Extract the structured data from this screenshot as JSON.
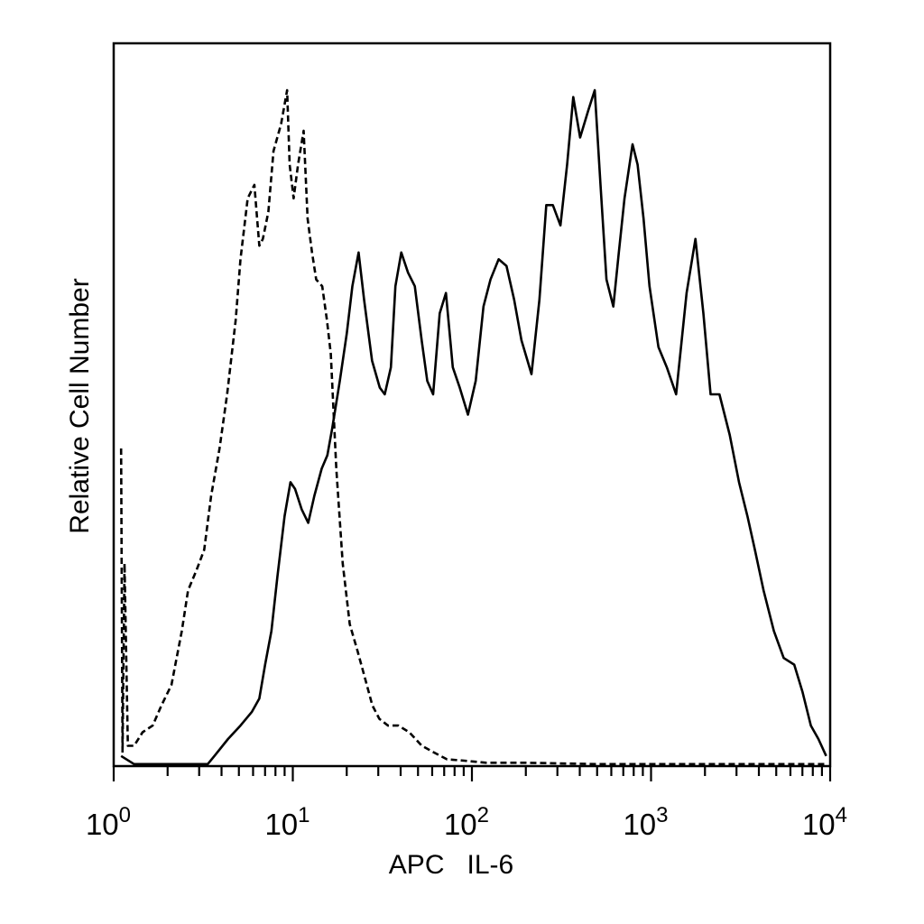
{
  "chart_data": {
    "type": "line",
    "x_scale": "log10",
    "xlim": [
      1,
      10000
    ],
    "ylim": [
      0,
      100
    ],
    "xlabel": "APC   IL-6",
    "ylabel": "Relative Cell Number",
    "x_ticks": [
      {
        "value": 1,
        "base": "10",
        "exp": "0"
      },
      {
        "value": 10,
        "base": "10",
        "exp": "1"
      },
      {
        "value": 100,
        "base": "10",
        "exp": "2"
      },
      {
        "value": 1000,
        "base": "10",
        "exp": "3"
      },
      {
        "value": 10000,
        "base": "10",
        "exp": "4"
      }
    ],
    "grid": false,
    "colors": {
      "line": "#000000",
      "background": "#ffffff"
    },
    "series": [
      {
        "style": "dashed",
        "points": [
          [
            1.1,
            47
          ],
          [
            1.12,
            2
          ],
          [
            1.15,
            30
          ],
          [
            1.2,
            3
          ],
          [
            1.3,
            3
          ],
          [
            1.45,
            5
          ],
          [
            1.65,
            6
          ],
          [
            1.85,
            9
          ],
          [
            2.1,
            12
          ],
          [
            2.4,
            20
          ],
          [
            2.6,
            26
          ],
          [
            2.9,
            29
          ],
          [
            3.2,
            32
          ],
          [
            3.5,
            40
          ],
          [
            3.9,
            47
          ],
          [
            4.3,
            55
          ],
          [
            4.8,
            66
          ],
          [
            5.1,
            75
          ],
          [
            5.6,
            84
          ],
          [
            6.1,
            86
          ],
          [
            6.5,
            77
          ],
          [
            6.8,
            78
          ],
          [
            7.3,
            82
          ],
          [
            7.8,
            91
          ],
          [
            8.6,
            95
          ],
          [
            9.3,
            100
          ],
          [
            9.6,
            89
          ],
          [
            10.1,
            84
          ],
          [
            10.7,
            89
          ],
          [
            11.5,
            94
          ],
          [
            12.1,
            81
          ],
          [
            12.8,
            76
          ],
          [
            13.5,
            72
          ],
          [
            14.6,
            71
          ],
          [
            15.5,
            66
          ],
          [
            16.3,
            61
          ],
          [
            17.5,
            44
          ],
          [
            19.0,
            30
          ],
          [
            20.8,
            21
          ],
          [
            23.0,
            17
          ],
          [
            25.3,
            13
          ],
          [
            27.8,
            9
          ],
          [
            30.4,
            7
          ],
          [
            34.0,
            6
          ],
          [
            38.8,
            6
          ],
          [
            44.7,
            5
          ],
          [
            52.5,
            3
          ],
          [
            61.5,
            2
          ],
          [
            72.6,
            1
          ],
          [
            90.7,
            0.8
          ],
          [
            120,
            0.5
          ],
          [
            200,
            0.5
          ],
          [
            500,
            0.3
          ],
          [
            1000,
            0.3
          ],
          [
            3000,
            0.3
          ],
          [
            9500,
            0.3
          ]
        ]
      },
      {
        "style": "solid",
        "points": [
          [
            1.1,
            1.5
          ],
          [
            1.3,
            0.3
          ],
          [
            2.0,
            0.3
          ],
          [
            3.35,
            0.3
          ],
          [
            3.65,
            1.5
          ],
          [
            4.35,
            4
          ],
          [
            5.1,
            6
          ],
          [
            5.9,
            8
          ],
          [
            6.5,
            10
          ],
          [
            7.0,
            15
          ],
          [
            7.6,
            20
          ],
          [
            8.2,
            28
          ],
          [
            9.0,
            37
          ],
          [
            9.7,
            42
          ],
          [
            10.3,
            41
          ],
          [
            11.2,
            38
          ],
          [
            12.2,
            36
          ],
          [
            13.2,
            40
          ],
          [
            14.5,
            44
          ],
          [
            15.6,
            46
          ],
          [
            16.6,
            50
          ],
          [
            18.3,
            57
          ],
          [
            20.0,
            64
          ],
          [
            21.5,
            71
          ],
          [
            23.3,
            76
          ],
          [
            25.0,
            69
          ],
          [
            27.7,
            60
          ],
          [
            30.6,
            56
          ],
          [
            32.6,
            55
          ],
          [
            35.3,
            59
          ],
          [
            37.4,
            71
          ],
          [
            40.3,
            76
          ],
          [
            44.0,
            73
          ],
          [
            48.0,
            71
          ],
          [
            52.4,
            63
          ],
          [
            56.3,
            57
          ],
          [
            60.7,
            55
          ],
          [
            66.1,
            67
          ],
          [
            71.6,
            70
          ],
          [
            78.2,
            59
          ],
          [
            85.5,
            56
          ],
          [
            95.0,
            52
          ],
          [
            105,
            57
          ],
          [
            116,
            68
          ],
          [
            127,
            72
          ],
          [
            141,
            75
          ],
          [
            156,
            74
          ],
          [
            172,
            69
          ],
          [
            189,
            63
          ],
          [
            215,
            58
          ],
          [
            238,
            69
          ],
          [
            260,
            83
          ],
          [
            283,
            83
          ],
          [
            312,
            80
          ],
          [
            340,
            89
          ],
          [
            368,
            99
          ],
          [
            402,
            93
          ],
          [
            446,
            97
          ],
          [
            485,
            100
          ],
          [
            522,
            86
          ],
          [
            564,
            72
          ],
          [
            616,
            68
          ],
          [
            661,
            76
          ],
          [
            711,
            84
          ],
          [
            788,
            92
          ],
          [
            841,
            89
          ],
          [
            908,
            81
          ],
          [
            981,
            71
          ],
          [
            1100,
            62
          ],
          [
            1225,
            59
          ],
          [
            1380,
            55
          ],
          [
            1580,
            70
          ],
          [
            1770,
            78
          ],
          [
            1960,
            67
          ],
          [
            2150,
            55
          ],
          [
            2410,
            55
          ],
          [
            2750,
            49
          ],
          [
            3100,
            42
          ],
          [
            3450,
            37
          ],
          [
            3800,
            32
          ],
          [
            4250,
            26
          ],
          [
            4850,
            20
          ],
          [
            5500,
            16
          ],
          [
            6300,
            15
          ],
          [
            7000,
            11
          ],
          [
            7800,
            6
          ],
          [
            8600,
            4
          ],
          [
            9500,
            1.5
          ]
        ]
      }
    ]
  }
}
